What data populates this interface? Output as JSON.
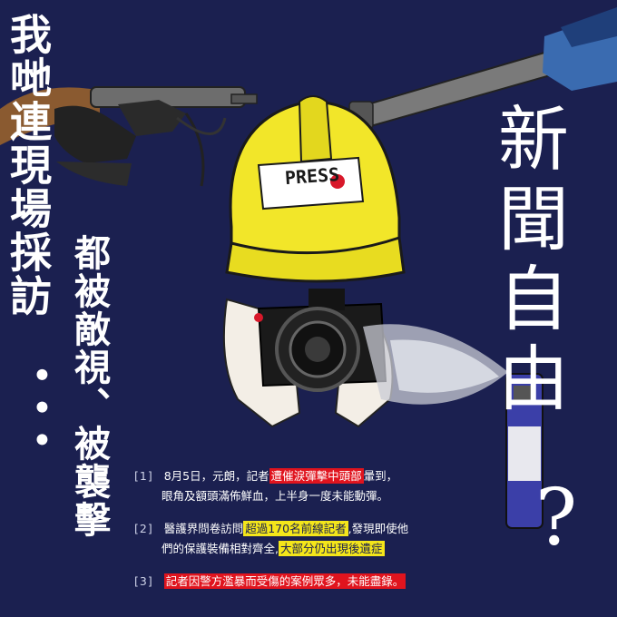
{
  "left_heading": "我哋連現場採訪",
  "left_ellipsis": "•••",
  "left_sub": "都被敵視、被襲擊",
  "right_heading": "新聞自由",
  "question_mark": "?",
  "helmet_label": "PRESS",
  "footnotes": [
    {
      "num": "[1]",
      "line1_pre": "8月5日，元朗，記者",
      "line1_hl": "遭催淚彈擊中頭部",
      "line1_post": "暈到，",
      "line2": "眼角及額頭滿佈鮮血，上半身一度未能動彈。"
    },
    {
      "num": "[2]",
      "line1_pre": "醫護界問卷訪問",
      "line1_hl": "超過170名前線記者",
      "line1_post": ",發現即使他",
      "line2_pre": "們的保護裝備相對齊全,",
      "line2_hl": "大部分仍出現後遺症"
    },
    {
      "num": "[3]",
      "line1_hl": "記者因警方濫暴而受傷的案例眾多，未能盡錄。"
    }
  ],
  "colors": {
    "background": "#1b2050",
    "helmet": "#f2e629",
    "highlight_red": "#e0141e",
    "highlight_yellow": "#f4e61a"
  }
}
